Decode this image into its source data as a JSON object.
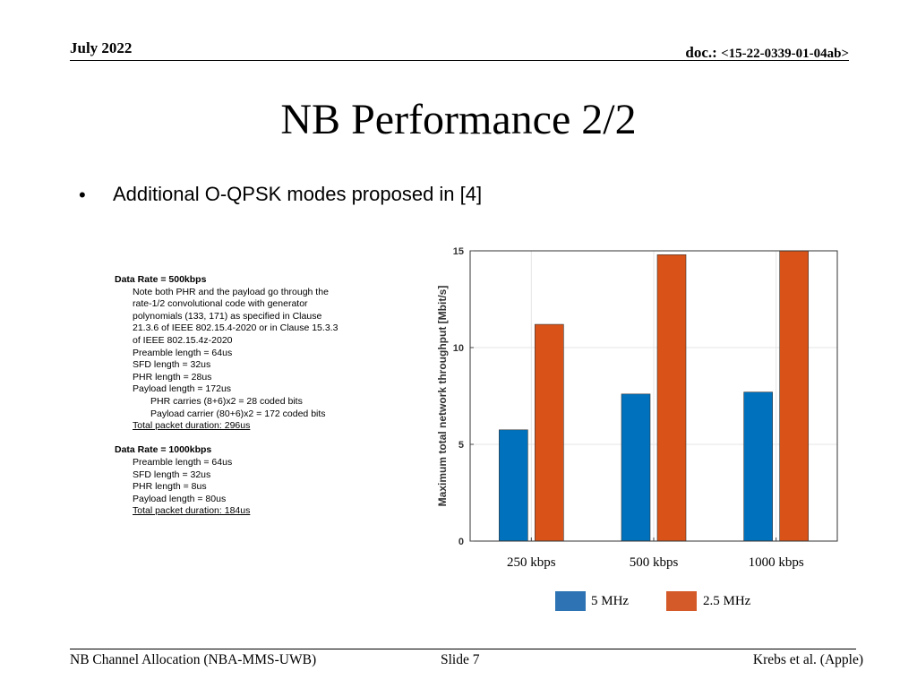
{
  "header": {
    "date": "July 2022",
    "doc_prefix": "doc.: ",
    "doc_id": "<15-22-0339-01-04ab>"
  },
  "slide_title": "NB Performance 2/2",
  "bullet": "Additional O-QPSK modes proposed in [4]",
  "notes": {
    "block1": {
      "heading": "Data Rate = 500kbps",
      "note_lines": [
        "Note both PHR and the payload go through the",
        "rate-1/2 convolutional code with generator",
        "polynomials (133, 171) as specified in Clause",
        "21.3.6 of IEEE 802.15.4-2020 or in Clause 15.3.3",
        "of IEEE 802.15.4z-2020"
      ],
      "preamble": "Preamble length = 64us",
      "sfd": "SFD length = 32us",
      "phr": "PHR length = 28us",
      "payload": "Payload length = 172us",
      "phr_carries": "PHR carries (8+6)x2 = 28 coded bits",
      "payload_carrier": "Payload carrier (80+6)x2 = 172 coded bits",
      "total": "Total packet duration: 296us"
    },
    "block2": {
      "heading": "Data Rate = 1000kbps",
      "preamble": "Preamble length = 64us",
      "sfd": "SFD length = 32us",
      "phr": "PHR length = 8us",
      "payload": "Payload length = 80us",
      "total": "Total packet duration: 184us"
    }
  },
  "chart_data": {
    "type": "bar",
    "categories": [
      "250 kbps",
      "500 kbps",
      "1000 kbps"
    ],
    "series": [
      {
        "name": "5 MHz",
        "values": [
          5.75,
          7.6,
          7.7
        ],
        "color": "#0072BD"
      },
      {
        "name": "2.5 MHz",
        "values": [
          11.2,
          14.8,
          15.0
        ],
        "color": "#D95319"
      }
    ],
    "ylabel": "Maximum total network throughput [Mbit/s]",
    "ylim": [
      0,
      15
    ],
    "yticks": [
      0,
      5,
      10,
      15
    ],
    "grid": true,
    "legend_position": "bottom"
  },
  "legend": {
    "item1": {
      "label": "5 MHz",
      "color": "#2E74B5"
    },
    "item2": {
      "label": "2.5 MHz",
      "color": "#D45A2A"
    }
  },
  "footer": {
    "left": "NB Channel Allocation (NBA-MMS-UWB)",
    "center": "Slide 7",
    "right": "Krebs et al. (Apple)"
  }
}
